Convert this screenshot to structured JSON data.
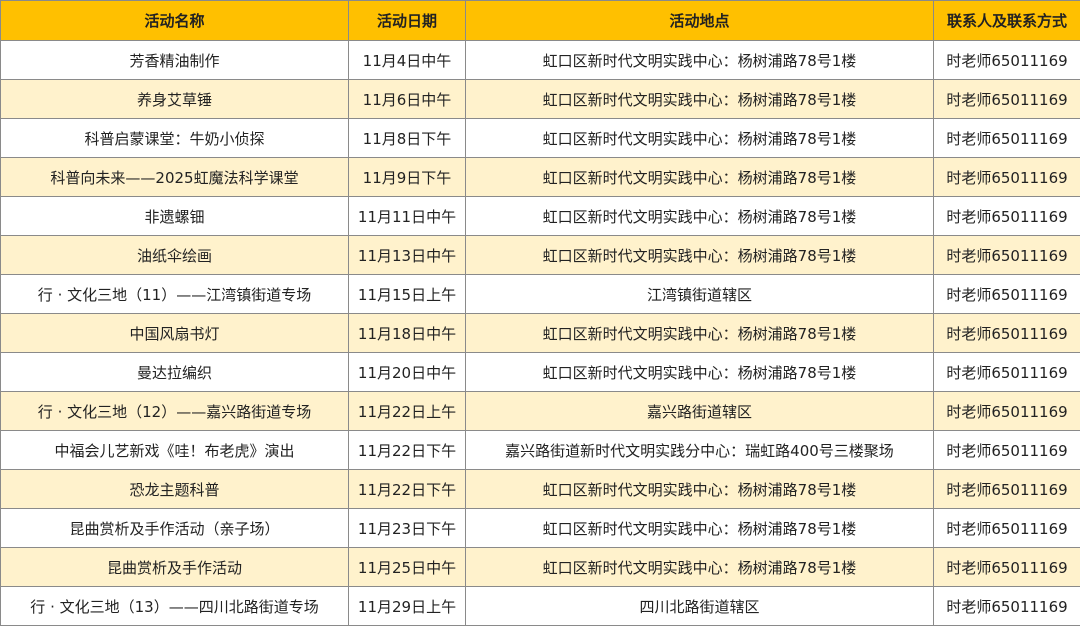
{
  "colors": {
    "header": "#FFC000",
    "alt_row": "#FFF2CC"
  },
  "headers": [
    "活动名称",
    "活动日期",
    "活动地点",
    "联系人及联系方式"
  ],
  "rows": [
    [
      "芳香精油制作",
      "11月4日中午",
      "虹口区新时代文明实践中心：杨树浦路78号1楼",
      "时老师65011169"
    ],
    [
      "养身艾草锤",
      "11月6日中午",
      "虹口区新时代文明实践中心：杨树浦路78号1楼",
      "时老师65011169"
    ],
    [
      "科普启蒙课堂：牛奶小侦探",
      "11月8日下午",
      "虹口区新时代文明实践中心：杨树浦路78号1楼",
      "时老师65011169"
    ],
    [
      "科普向未来——2025虹魔法科学课堂",
      "11月9日下午",
      "虹口区新时代文明实践中心：杨树浦路78号1楼",
      "时老师65011169"
    ],
    [
      "非遗螺钿",
      "11月11日中午",
      "虹口区新时代文明实践中心：杨树浦路78号1楼",
      "时老师65011169"
    ],
    [
      "油纸伞绘画",
      "11月13日中午",
      "虹口区新时代文明实践中心：杨树浦路78号1楼",
      "时老师65011169"
    ],
    [
      "行 · 文化三地（11）——江湾镇街道专场",
      "11月15日上午",
      "江湾镇街道辖区",
      "时老师65011169"
    ],
    [
      "中国风扇书灯",
      "11月18日中午",
      "虹口区新时代文明实践中心：杨树浦路78号1楼",
      "时老师65011169"
    ],
    [
      "曼达拉编织",
      "11月20日中午",
      "虹口区新时代文明实践中心：杨树浦路78号1楼",
      "时老师65011169"
    ],
    [
      "行 · 文化三地（12）——嘉兴路街道专场",
      "11月22日上午",
      "嘉兴路街道辖区",
      "时老师65011169"
    ],
    [
      "中福会儿艺新戏《哇！布老虎》演出",
      "11月22日下午",
      "嘉兴路街道新时代文明实践分中心：瑞虹路400号三楼聚场",
      "时老师65011169"
    ],
    [
      "恐龙主题科普",
      "11月22日下午",
      "虹口区新时代文明实践中心：杨树浦路78号1楼",
      "时老师65011169"
    ],
    [
      "昆曲赏析及手作活动（亲子场）",
      "11月23日下午",
      "虹口区新时代文明实践中心：杨树浦路78号1楼",
      "时老师65011169"
    ],
    [
      "昆曲赏析及手作活动",
      "11月25日中午",
      "虹口区新时代文明实践中心：杨树浦路78号1楼",
      "时老师65011169"
    ],
    [
      "行 · 文化三地（13）——四川北路街道专场",
      "11月29日上午",
      "四川北路街道辖区",
      "时老师65011169"
    ]
  ]
}
